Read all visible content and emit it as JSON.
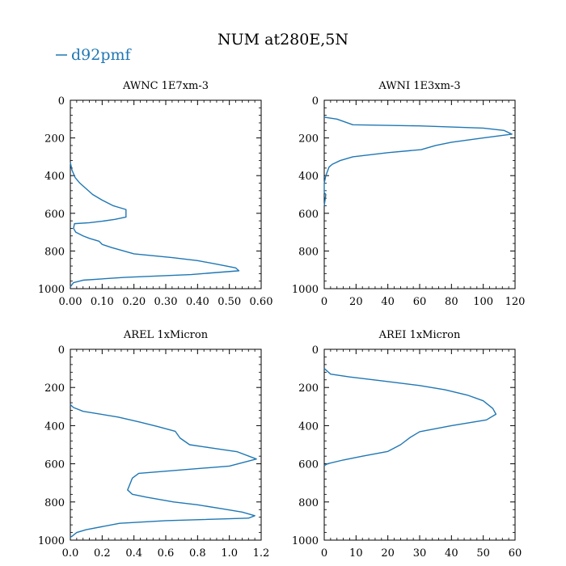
{
  "figure": {
    "title": "NUM at280E,5N",
    "legend": {
      "label": "d92pmf",
      "color": "#1f77b4",
      "placement": "top-left"
    }
  },
  "chart_data": [
    {
      "type": "line",
      "title": "AWNC 1E7xm-3",
      "xlim": [
        0,
        0.6
      ],
      "ylim": [
        1000,
        0
      ],
      "xticks": [
        "0.00",
        "0.10",
        "0.20",
        "0.30",
        "0.40",
        "0.50",
        "0.60"
      ],
      "yticks": [
        "0",
        "200",
        "400",
        "600",
        "800",
        "1000"
      ],
      "series": [
        {
          "name": "d92pmf",
          "color": "#1f77b4",
          "points": [
            [
              0,
              330
            ],
            [
              0.005,
              370
            ],
            [
              0.015,
              410
            ],
            [
              0.03,
              440
            ],
            [
              0.05,
              470
            ],
            [
              0.07,
              500
            ],
            [
              0.1,
              530
            ],
            [
              0.135,
              560
            ],
            [
              0.175,
              580
            ],
            [
              0.175,
              620
            ],
            [
              0.14,
              632
            ],
            [
              0.1,
              642
            ],
            [
              0.06,
              650
            ],
            [
              0.013,
              655
            ],
            [
              0.01,
              680
            ],
            [
              0.017,
              700
            ],
            [
              0.04,
              720
            ],
            [
              0.06,
              733
            ],
            [
              0.09,
              748
            ],
            [
              0.1,
              765
            ],
            [
              0.13,
              782
            ],
            [
              0.2,
              815
            ],
            [
              0.32,
              835
            ],
            [
              0.4,
              851
            ],
            [
              0.46,
              870
            ],
            [
              0.52,
              890
            ],
            [
              0.53,
              905
            ],
            [
              0.38,
              925
            ],
            [
              0.17,
              940
            ],
            [
              0.04,
              955
            ],
            [
              0.01,
              968
            ],
            [
              0,
              990
            ]
          ]
        }
      ]
    },
    {
      "type": "line",
      "title": "AWNI 1E3xm-3",
      "xlim": [
        0,
        120
      ],
      "ylim": [
        1000,
        0
      ],
      "xticks": [
        "0",
        "20",
        "40",
        "60",
        "80",
        "100",
        "120"
      ],
      "yticks": [
        "0",
        "200",
        "400",
        "600",
        "800",
        "1000"
      ],
      "series": [
        {
          "name": "d92pmf",
          "color": "#1f77b4",
          "points": [
            [
              0,
              90
            ],
            [
              8,
              100
            ],
            [
              18,
              130
            ],
            [
              60,
              136
            ],
            [
              100,
              148
            ],
            [
              113,
              160
            ],
            [
              118,
              180
            ],
            [
              100,
              200
            ],
            [
              80,
              223
            ],
            [
              70,
              240
            ],
            [
              61,
              262
            ],
            [
              40,
              278
            ],
            [
              18,
              300
            ],
            [
              10,
              320
            ],
            [
              5,
              340
            ],
            [
              3,
              355
            ],
            [
              1,
              400
            ],
            [
              0,
              440
            ],
            [
              0,
              490
            ],
            [
              1,
              500
            ],
            [
              0,
              560
            ]
          ]
        }
      ]
    },
    {
      "type": "line",
      "title": "AREL 1xMicron",
      "xlim": [
        0,
        1.2
      ],
      "ylim": [
        1000,
        0
      ],
      "xticks": [
        "0.0",
        "0.2",
        "0.4",
        "0.6",
        "0.8",
        "1.0",
        "1.2"
      ],
      "yticks": [
        "0",
        "200",
        "400",
        "600",
        "800",
        "1000"
      ],
      "series": [
        {
          "name": "d92pmf",
          "color": "#1f77b4",
          "points": [
            [
              0,
              290
            ],
            [
              0.02,
              305
            ],
            [
              0.08,
              325
            ],
            [
              0.3,
              355
            ],
            [
              0.43,
              380
            ],
            [
              0.55,
              405
            ],
            [
              0.66,
              430
            ],
            [
              0.69,
              465
            ],
            [
              0.75,
              500
            ],
            [
              0.88,
              516
            ],
            [
              1.05,
              537
            ],
            [
              1.17,
              575
            ],
            [
              1.0,
              612
            ],
            [
              0.43,
              650
            ],
            [
              0.39,
              675
            ],
            [
              0.36,
              737
            ],
            [
              0.39,
              760
            ],
            [
              0.48,
              775
            ],
            [
              0.65,
              800
            ],
            [
              0.8,
              815
            ],
            [
              0.95,
              835
            ],
            [
              1.08,
              853
            ],
            [
              1.16,
              872
            ],
            [
              1.12,
              885
            ],
            [
              0.6,
              898
            ],
            [
              0.31,
              912
            ],
            [
              0.1,
              945
            ],
            [
              0.04,
              960
            ],
            [
              0.01,
              980
            ],
            [
              0,
              985
            ]
          ]
        }
      ]
    },
    {
      "type": "line",
      "title": "AREI 1xMicron",
      "xlim": [
        0,
        60
      ],
      "ylim": [
        1000,
        0
      ],
      "xticks": [
        "0",
        "10",
        "20",
        "30",
        "40",
        "50",
        "60"
      ],
      "yticks": [
        "0",
        "200",
        "400",
        "600",
        "800",
        "1000"
      ],
      "series": [
        {
          "name": "d92pmf",
          "color": "#1f77b4",
          "points": [
            [
              0,
              100
            ],
            [
              2,
              130
            ],
            [
              8,
              145
            ],
            [
              18,
              165
            ],
            [
              30,
              190
            ],
            [
              38,
              212
            ],
            [
              45,
              240
            ],
            [
              50,
              270
            ],
            [
              53,
              310
            ],
            [
              54,
              340
            ],
            [
              51,
              370
            ],
            [
              40,
              400
            ],
            [
              30,
              432
            ],
            [
              27,
              462
            ],
            [
              24,
              500
            ],
            [
              20,
              535
            ],
            [
              12,
              560
            ],
            [
              6,
              580
            ],
            [
              1,
              600
            ],
            [
              0,
              610
            ]
          ]
        }
      ]
    }
  ]
}
